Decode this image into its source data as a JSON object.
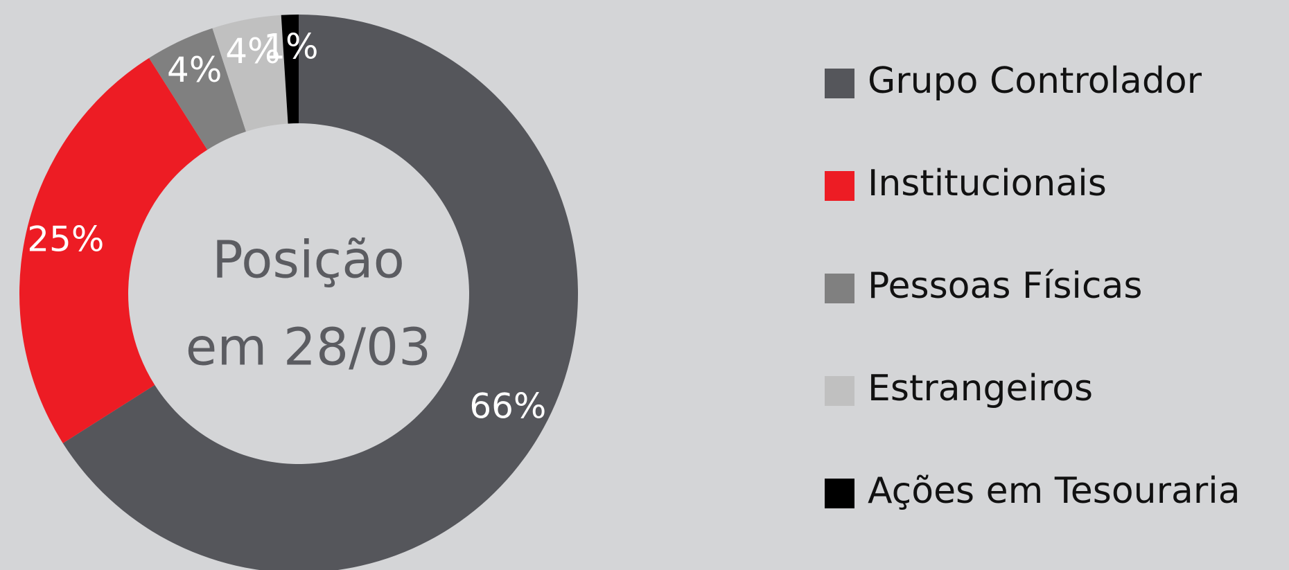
{
  "chart_data": {
    "type": "donut",
    "center_text": [
      "Posição",
      "em 28/03"
    ],
    "series": [
      {
        "name": "Grupo Controlador",
        "color": "#55565b",
        "values": [
          66
        ],
        "value_labels": [
          "66%"
        ]
      },
      {
        "name": "Institucionais",
        "color": "#ed1c24",
        "values": [
          25
        ],
        "value_labels": [
          "25%"
        ]
      },
      {
        "name": "Pessoas Físicas",
        "color": "#808080",
        "values": [
          4
        ],
        "value_labels": [
          "4%"
        ]
      },
      {
        "name": "Estrangeiros",
        "color": "#c0c0c0",
        "values": [
          4
        ],
        "value_labels": [
          "4%"
        ]
      },
      {
        "name": "Ações em Tesouraria",
        "color": "#000000",
        "values": [
          1
        ],
        "value_labels": [
          "1%"
        ]
      }
    ],
    "legend": "right"
  }
}
